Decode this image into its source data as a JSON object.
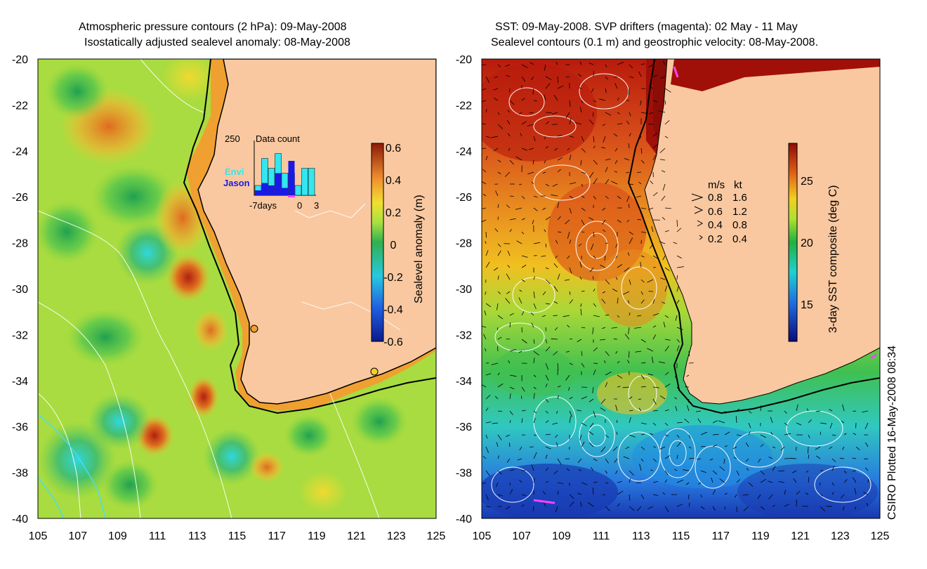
{
  "left_panel": {
    "title_line1": "Atmospheric pressure contours (2 hPa): 09-May-2008",
    "title_line2": "Isostatically adjusted sealevel anomaly: 08-May-2008",
    "colorbar_label": "Sealevel anomaly (m)",
    "colorbar_ticks": [
      "0.6",
      "0.4",
      "0.2",
      "0",
      "-0.2",
      "-0.4",
      "-0.6"
    ],
    "inset": {
      "title": "Data count",
      "max_label": "250",
      "legend_envi": "Envi",
      "legend_jason": "Jason",
      "xlabel_left": "-7days",
      "xlabel_zero": "0",
      "xlabel_right": "3",
      "envi_color": "#33e6f0",
      "jason_color": "#1a1ae6",
      "bars_envi": [
        0.2,
        0.75,
        0.55,
        0.85,
        0.45,
        0.45,
        0.2,
        0.55,
        0.55
      ],
      "bars_jason": [
        0.1,
        0.25,
        0.2,
        0.45,
        0.15,
        0.7,
        0.0,
        0.0,
        0.0
      ]
    },
    "chart_data": {
      "type": "heatmap",
      "title": "Isostatically adjusted sealevel anomaly: 08-May-2008",
      "xlim": [
        105,
        125
      ],
      "ylim": [
        -40,
        -20
      ],
      "colorbar_range": [
        -0.6,
        0.6
      ],
      "units": "m"
    }
  },
  "right_panel": {
    "title_line1": "SST: 09-May-2008. SVP drifters (magenta): 02 May - 11 May",
    "title_line2": "Sealevel contours (0.1 m) and geostrophic velocity: 08-May-2008.",
    "colorbar_label": "3-day SST composite (deg C)",
    "colorbar_ticks": [
      "25",
      "20",
      "15"
    ],
    "velocity_legend": {
      "header_ms": "m/s",
      "header_kt": "kt",
      "rows": [
        {
          "ms": "0.8",
          "kt": "1.6"
        },
        {
          "ms": "0.6",
          "kt": "1.2"
        },
        {
          "ms": "0.4",
          "kt": "0.8"
        },
        {
          "ms": "0.2",
          "kt": "0.4"
        }
      ]
    },
    "chart_data": {
      "type": "heatmap",
      "title": "3-day SST composite 09-May-2008",
      "xlim": [
        105,
        125
      ],
      "ylim": [
        -40,
        -20
      ],
      "colorbar_range": [
        12,
        28
      ],
      "units": "deg C"
    }
  },
  "x_ticks": [
    "105",
    "107",
    "109",
    "111",
    "113",
    "115",
    "117",
    "119",
    "121",
    "123",
    "125"
  ],
  "y_ticks": [
    "-20",
    "-22",
    "-24",
    "-26",
    "-28",
    "-30",
    "-32",
    "-34",
    "-36",
    "-38",
    "-40"
  ],
  "credit": "CSIRO Plotted 16-May-2008 08:34",
  "colors": {
    "land": "#f9c8a0",
    "coast": "#000000"
  }
}
